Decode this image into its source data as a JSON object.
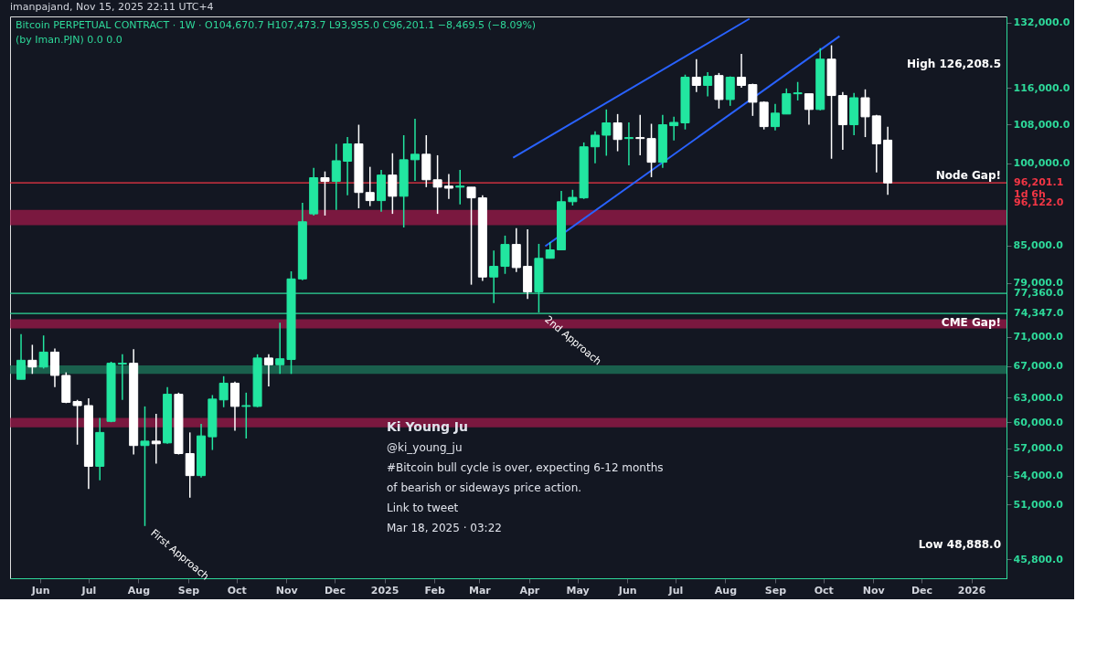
{
  "chart_data": {
    "type": "candlestick",
    "title": "Bitcoin PERPETUAL CONTRACT · 1W · O104,670.7 H107,473.7 L93,955.0 C96,201.1 −8,469.5 (−8.09%)",
    "subtitle": "(by Iman.PJN) 0.0 0.0",
    "x": [
      "2024-05-20",
      "2024-05-27",
      "2024-06-03",
      "2024-06-10",
      "2024-06-17",
      "2024-06-24",
      "2024-07-01",
      "2024-07-08",
      "2024-07-15",
      "2024-07-22",
      "2024-07-29",
      "2024-08-05",
      "2024-08-12",
      "2024-08-19",
      "2024-08-26",
      "2024-09-02",
      "2024-09-09",
      "2024-09-16",
      "2024-09-23",
      "2024-09-30",
      "2024-10-07",
      "2024-10-14",
      "2024-10-21",
      "2024-10-28",
      "2024-11-04",
      "2024-11-11",
      "2024-11-18",
      "2024-11-25",
      "2024-12-02",
      "2024-12-09",
      "2024-12-16",
      "2024-12-23",
      "2024-12-30",
      "2025-01-06",
      "2025-01-13",
      "2025-01-20",
      "2025-01-27",
      "2025-02-03",
      "2025-02-10",
      "2025-02-17",
      "2025-02-24",
      "2025-03-03",
      "2025-03-10",
      "2025-03-17",
      "2025-03-24",
      "2025-03-31",
      "2025-04-07",
      "2025-04-14",
      "2025-04-21",
      "2025-04-28",
      "2025-05-05",
      "2025-05-12",
      "2025-05-19",
      "2025-05-26",
      "2025-06-02",
      "2025-06-09",
      "2025-06-16",
      "2025-06-23",
      "2025-06-30",
      "2025-07-07",
      "2025-07-14",
      "2025-07-21",
      "2025-07-28",
      "2025-08-04",
      "2025-08-11",
      "2025-08-18",
      "2025-08-25",
      "2025-09-01",
      "2025-09-08",
      "2025-09-15",
      "2025-09-22",
      "2025-09-29",
      "2025-10-06",
      "2025-10-13",
      "2025-10-20",
      "2025-10-27",
      "2025-11-03",
      "2025-11-10"
    ],
    "ohlc": [
      [
        65300,
        71400,
        65300,
        67800
      ],
      [
        67800,
        69900,
        66000,
        66900
      ],
      [
        66900,
        71200,
        66700,
        68900
      ],
      [
        68900,
        69400,
        64300,
        65800
      ],
      [
        65800,
        66200,
        62300,
        62400
      ],
      [
        62500,
        62700,
        57400,
        62000
      ],
      [
        62000,
        62900,
        52600,
        55000
      ],
      [
        55000,
        60500,
        53500,
        58800
      ],
      [
        60100,
        67600,
        60000,
        67400
      ],
      [
        67300,
        68600,
        62700,
        67400
      ],
      [
        67400,
        69300,
        56300,
        57300
      ],
      [
        57300,
        61900,
        48888,
        57800
      ],
      [
        57800,
        61000,
        55300,
        57500
      ],
      [
        57600,
        64300,
        57500,
        63400
      ],
      [
        63400,
        63600,
        56300,
        56400
      ],
      [
        56400,
        58800,
        51700,
        54000
      ],
      [
        54000,
        59800,
        53800,
        58400
      ],
      [
        58300,
        63300,
        56800,
        62800
      ],
      [
        62700,
        65700,
        61800,
        64800
      ],
      [
        64800,
        65000,
        59000,
        61900
      ],
      [
        61900,
        63600,
        58100,
        62000
      ],
      [
        61900,
        68600,
        61800,
        68100
      ],
      [
        68100,
        68600,
        64400,
        67200
      ],
      [
        67200,
        73000,
        66000,
        68000
      ],
      [
        67900,
        80800,
        66000,
        79600
      ],
      [
        79600,
        92500,
        79400,
        89100
      ],
      [
        90500,
        99100,
        90200,
        97200
      ],
      [
        97200,
        98400,
        90200,
        96500
      ],
      [
        96500,
        103900,
        91200,
        100500
      ],
      [
        100400,
        105300,
        93900,
        103900
      ],
      [
        103900,
        107900,
        91500,
        94400
      ],
      [
        94400,
        99300,
        91900,
        92900
      ],
      [
        92900,
        98700,
        90900,
        97700
      ],
      [
        97700,
        102000,
        90500,
        93700
      ],
      [
        93700,
        105700,
        88100,
        100700
      ],
      [
        100700,
        109200,
        96600,
        101800
      ],
      [
        101800,
        105700,
        95400,
        96800
      ],
      [
        96800,
        101600,
        90500,
        95400
      ],
      [
        95600,
        97900,
        93200,
        95200
      ],
      [
        95400,
        98700,
        92200,
        95600
      ],
      [
        95400,
        95400,
        78700,
        93400
      ],
      [
        93400,
        93900,
        79300,
        79900
      ],
      [
        79900,
        84200,
        75900,
        81600
      ],
      [
        81600,
        86700,
        80400,
        85200
      ],
      [
        85200,
        88000,
        80700,
        81400
      ],
      [
        81600,
        87800,
        76500,
        77600
      ],
      [
        77600,
        85300,
        74500,
        82900
      ],
      [
        82900,
        85600,
        82900,
        84300
      ],
      [
        84300,
        94700,
        84300,
        92700
      ],
      [
        92700,
        94900,
        92000,
        93500
      ],
      [
        93400,
        104200,
        93200,
        103300
      ],
      [
        103300,
        106500,
        100000,
        105700
      ],
      [
        105700,
        111200,
        101500,
        108300
      ],
      [
        108300,
        110200,
        102400,
        104800
      ],
      [
        105000,
        108400,
        99600,
        105200
      ],
      [
        105200,
        110000,
        101600,
        105000
      ],
      [
        105000,
        108100,
        97300,
        100200
      ],
      [
        100200,
        110000,
        99100,
        107900
      ],
      [
        107700,
        109600,
        104600,
        108400
      ],
      [
        108300,
        119100,
        106900,
        118500
      ],
      [
        118500,
        122800,
        115100,
        116600
      ],
      [
        116600,
        119700,
        114100,
        118700
      ],
      [
        118900,
        119500,
        111400,
        113400
      ],
      [
        113400,
        118700,
        112000,
        118500
      ],
      [
        118500,
        124100,
        116100,
        116600
      ],
      [
        116800,
        117000,
        109800,
        112800
      ],
      [
        112800,
        113000,
        106900,
        107500
      ],
      [
        107500,
        112400,
        106700,
        110400
      ],
      [
        110200,
        115900,
        110200,
        114700
      ],
      [
        114700,
        117400,
        113200,
        114900
      ],
      [
        114700,
        114700,
        107900,
        111200
      ],
      [
        111200,
        125500,
        111000,
        122800
      ],
      [
        122800,
        126208.5,
        100900,
        114300
      ],
      [
        114300,
        115100,
        102700,
        107900
      ],
      [
        107900,
        114900,
        105700,
        113800
      ],
      [
        113800,
        115700,
        105300,
        109600
      ],
      [
        109800,
        110000,
        98200,
        103900
      ],
      [
        104670.7,
        107473.7,
        93955.0,
        96201.1
      ]
    ],
    "colors": [
      "#22e6a0",
      "#ffffff",
      "#22e6a0",
      "#ffffff",
      "#ffffff",
      "#ffffff",
      "#ffffff",
      "#22e6a0",
      "#22e6a0",
      "#22e6a0",
      "#ffffff",
      "#22e6a0",
      "#ffffff",
      "#22e6a0",
      "#ffffff",
      "#ffffff",
      "#22e6a0",
      "#22e6a0",
      "#22e6a0",
      "#ffffff",
      "#22e6a0",
      "#22e6a0",
      "#ffffff",
      "#22e6a0",
      "#22e6a0",
      "#22e6a0",
      "#22e6a0",
      "#ffffff",
      "#22e6a0",
      "#22e6a0",
      "#ffffff",
      "#ffffff",
      "#22e6a0",
      "#ffffff",
      "#22e6a0",
      "#22e6a0",
      "#ffffff",
      "#ffffff",
      "#ffffff",
      "#22e6a0",
      "#ffffff",
      "#ffffff",
      "#22e6a0",
      "#22e6a0",
      "#ffffff",
      "#ffffff",
      "#22e6a0",
      "#22e6a0",
      "#22e6a0",
      "#22e6a0",
      "#22e6a0",
      "#22e6a0",
      "#22e6a0",
      "#ffffff",
      "#22e6a0",
      "#ffffff",
      "#ffffff",
      "#22e6a0",
      "#22e6a0",
      "#22e6a0",
      "#ffffff",
      "#22e6a0",
      "#ffffff",
      "#22e6a0",
      "#ffffff",
      "#ffffff",
      "#ffffff",
      "#22e6a0",
      "#22e6a0",
      "#22e6a0",
      "#ffffff",
      "#22e6a0",
      "#ffffff",
      "#ffffff",
      "#22e6a0",
      "#ffffff",
      "#ffffff",
      "#ffffff"
    ],
    "series": [
      {
        "type": "line",
        "x": [
          "2025-03-22",
          "2025-08-16"
        ],
        "values": [
          101100,
          133000
        ],
        "color": "#2962ff"
      },
      {
        "type": "line",
        "x": [
          "2025-04-11",
          "2025-10-11"
        ],
        "values": [
          84900,
          128500
        ],
        "color": "#2962ff"
      }
    ],
    "xlim": [
      "2024-05-16",
      "2026-01-20"
    ],
    "xticks": [
      {
        "value": "2024-06-01",
        "label": "Jun"
      },
      {
        "value": "2024-07-01",
        "label": "Jul"
      },
      {
        "value": "2024-08-01",
        "label": "Aug"
      },
      {
        "value": "2024-09-01",
        "label": "Sep"
      },
      {
        "value": "2024-10-01",
        "label": "Oct"
      },
      {
        "value": "2024-11-01",
        "label": "Nov"
      },
      {
        "value": "2024-12-01",
        "label": "Dec"
      },
      {
        "value": "2025-01-01",
        "label": "2025"
      },
      {
        "value": "2025-02-01",
        "label": "Feb"
      },
      {
        "value": "2025-03-01",
        "label": "Mar"
      },
      {
        "value": "2025-04-01",
        "label": "Apr"
      },
      {
        "value": "2025-05-01",
        "label": "May"
      },
      {
        "value": "2025-06-01",
        "label": "Jun"
      },
      {
        "value": "2025-07-01",
        "label": "Jul"
      },
      {
        "value": "2025-08-01",
        "label": "Aug"
      },
      {
        "value": "2025-09-01",
        "label": "Sep"
      },
      {
        "value": "2025-10-01",
        "label": "Oct"
      },
      {
        "value": "2025-11-01",
        "label": "Nov"
      },
      {
        "value": "2025-12-01",
        "label": "Dec"
      },
      {
        "value": "2026-01-01",
        "label": "2026"
      }
    ],
    "ylim": [
      44100,
      133600
    ],
    "log": true,
    "yticks": [
      {
        "value": 45800,
        "label": "45,800.0"
      },
      {
        "value": 51000,
        "label": "51,000.0"
      },
      {
        "value": 54000,
        "label": "54,000.0"
      },
      {
        "value": 57000,
        "label": "57,000.0"
      },
      {
        "value": 60000,
        "label": "60,000.0"
      },
      {
        "value": 63000,
        "label": "63,000.0"
      },
      {
        "value": 67000,
        "label": "67,000.0"
      },
      {
        "value": 71000,
        "label": "71,000.0"
      },
      {
        "value": 79000,
        "label": "79,000.0"
      },
      {
        "value": 85000,
        "label": "85,000.0"
      },
      {
        "value": 100000,
        "label": "100,000.0"
      },
      {
        "value": 108000,
        "label": "108,000.0"
      },
      {
        "value": 116000,
        "label": "116,000.0"
      },
      {
        "value": 132000,
        "label": "132,000.0"
      }
    ],
    "ref_lines": [
      {
        "axis": "y",
        "value": 96201.1,
        "label": "96,201.1\n1d 6h",
        "color": "#f23645"
      },
      {
        "axis": "y",
        "value": 77360,
        "label": "77,360.0",
        "color": "#2ed99a"
      },
      {
        "axis": "y",
        "value": 74347,
        "label": "74,347.0",
        "color": "#2ed99a"
      }
    ],
    "bands": [
      {
        "axis": "y",
        "from": 88500,
        "to": 91200,
        "color": "#9e1a4a",
        "label": "96,122.0"
      },
      {
        "axis": "y",
        "from": 72200,
        "to": 73500,
        "color": "#9e1a4a"
      },
      {
        "axis": "y",
        "from": 66000,
        "to": 67100,
        "color": "#1d7a5c"
      },
      {
        "axis": "y",
        "from": 59400,
        "to": 60500,
        "color": "#9e1a4a"
      }
    ],
    "annotations": [
      "imanpajand, Nov 15, 2025 22:11 UTC+4",
      "Ki Young Ju",
      "@ki_young_ju",
      "#Bitcoin bull cycle is over, expecting 6-12 months",
      "of bearish or sideways price action.",
      "Link to tweet",
      "Mar 18, 2025 · 03:22",
      "CME Gap!",
      "High 126,208.5",
      "Low 48,888.0",
      {
        "text": "First Approach",
        "x": "2024-08-05",
        "y": 48888
      },
      {
        "text": "2nd Approach",
        "x": "2025-04-07",
        "y": 74500
      },
      {
        "text": "Node Gap!",
        "y": 96201.1
      }
    ],
    "grid": false
  }
}
